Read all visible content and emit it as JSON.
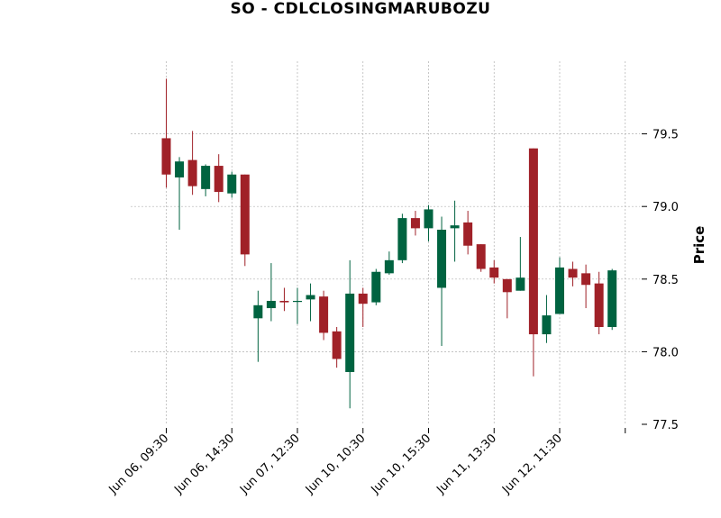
{
  "chart_data": {
    "type": "candlestick",
    "title": "SO - CDLCLOSINGMARUBOZU",
    "ylabel": "Price",
    "xlabel": "",
    "ylim": [
      77.5,
      80.0
    ],
    "yticks": [
      77.5,
      78.0,
      78.5,
      79.0,
      79.5
    ],
    "ytick_labels": [
      "77.5",
      "78.0",
      "78.5",
      "79.0",
      "79.5"
    ],
    "xtick_labels": [
      "Jun 06, 09:30",
      "Jun 06, 14:30",
      "Jun 07, 12:30",
      "Jun 10, 10:30",
      "Jun 10, 15:30",
      "Jun 11, 13:30",
      "Jun 12, 11:30",
      ""
    ],
    "xtick_indices": [
      0,
      5,
      10,
      15,
      20,
      25,
      30,
      35
    ],
    "grid": true,
    "up_color": "#006340",
    "down_color": "#A02128",
    "candles": [
      {
        "o": 79.47,
        "h": 79.88,
        "l": 79.13,
        "c": 79.22
      },
      {
        "o": 79.2,
        "h": 79.34,
        "l": 78.84,
        "c": 79.31
      },
      {
        "o": 79.32,
        "h": 79.52,
        "l": 79.08,
        "c": 79.14
      },
      {
        "o": 79.12,
        "h": 79.29,
        "l": 79.07,
        "c": 79.28
      },
      {
        "o": 79.28,
        "h": 79.36,
        "l": 79.03,
        "c": 79.1
      },
      {
        "o": 79.09,
        "h": 79.24,
        "l": 79.06,
        "c": 79.22
      },
      {
        "o": 79.22,
        "h": 79.22,
        "l": 78.59,
        "c": 78.67
      },
      {
        "o": 78.23,
        "h": 78.42,
        "l": 77.93,
        "c": 78.32
      },
      {
        "o": 78.3,
        "h": 78.61,
        "l": 78.21,
        "c": 78.35
      },
      {
        "o": 78.35,
        "h": 78.44,
        "l": 78.28,
        "c": 78.34
      },
      {
        "o": 78.35,
        "h": 78.44,
        "l": 78.19,
        "c": 78.35
      },
      {
        "o": 78.36,
        "h": 78.47,
        "l": 78.21,
        "c": 78.39
      },
      {
        "o": 78.38,
        "h": 78.42,
        "l": 78.08,
        "c": 78.13
      },
      {
        "o": 78.14,
        "h": 78.17,
        "l": 77.89,
        "c": 77.95
      },
      {
        "o": 77.86,
        "h": 78.63,
        "l": 77.61,
        "c": 78.4
      },
      {
        "o": 78.4,
        "h": 78.44,
        "l": 78.17,
        "c": 78.33
      },
      {
        "o": 78.34,
        "h": 78.57,
        "l": 78.32,
        "c": 78.55
      },
      {
        "o": 78.54,
        "h": 78.69,
        "l": 78.53,
        "c": 78.63
      },
      {
        "o": 78.63,
        "h": 78.95,
        "l": 78.61,
        "c": 78.92
      },
      {
        "o": 78.92,
        "h": 78.97,
        "l": 78.8,
        "c": 78.85
      },
      {
        "o": 78.85,
        "h": 79.01,
        "l": 78.76,
        "c": 78.98
      },
      {
        "o": 78.44,
        "h": 78.93,
        "l": 78.04,
        "c": 78.84
      },
      {
        "o": 78.85,
        "h": 79.04,
        "l": 78.62,
        "c": 78.87
      },
      {
        "o": 78.89,
        "h": 78.97,
        "l": 78.67,
        "c": 78.73
      },
      {
        "o": 78.74,
        "h": 78.74,
        "l": 78.55,
        "c": 78.57
      },
      {
        "o": 78.58,
        "h": 78.63,
        "l": 78.47,
        "c": 78.51
      },
      {
        "o": 78.5,
        "h": 78.5,
        "l": 78.23,
        "c": 78.41
      },
      {
        "o": 78.42,
        "h": 78.79,
        "l": 78.42,
        "c": 78.51
      },
      {
        "o": 79.4,
        "h": 79.4,
        "l": 77.83,
        "c": 78.12
      },
      {
        "o": 78.12,
        "h": 78.39,
        "l": 78.06,
        "c": 78.25
      },
      {
        "o": 78.26,
        "h": 78.65,
        "l": 78.26,
        "c": 78.58
      },
      {
        "o": 78.57,
        "h": 78.62,
        "l": 78.45,
        "c": 78.51
      },
      {
        "o": 78.54,
        "h": 78.6,
        "l": 78.3,
        "c": 78.46
      },
      {
        "o": 78.47,
        "h": 78.55,
        "l": 78.12,
        "c": 78.17
      },
      {
        "o": 78.17,
        "h": 78.57,
        "l": 78.15,
        "c": 78.56
      }
    ]
  }
}
